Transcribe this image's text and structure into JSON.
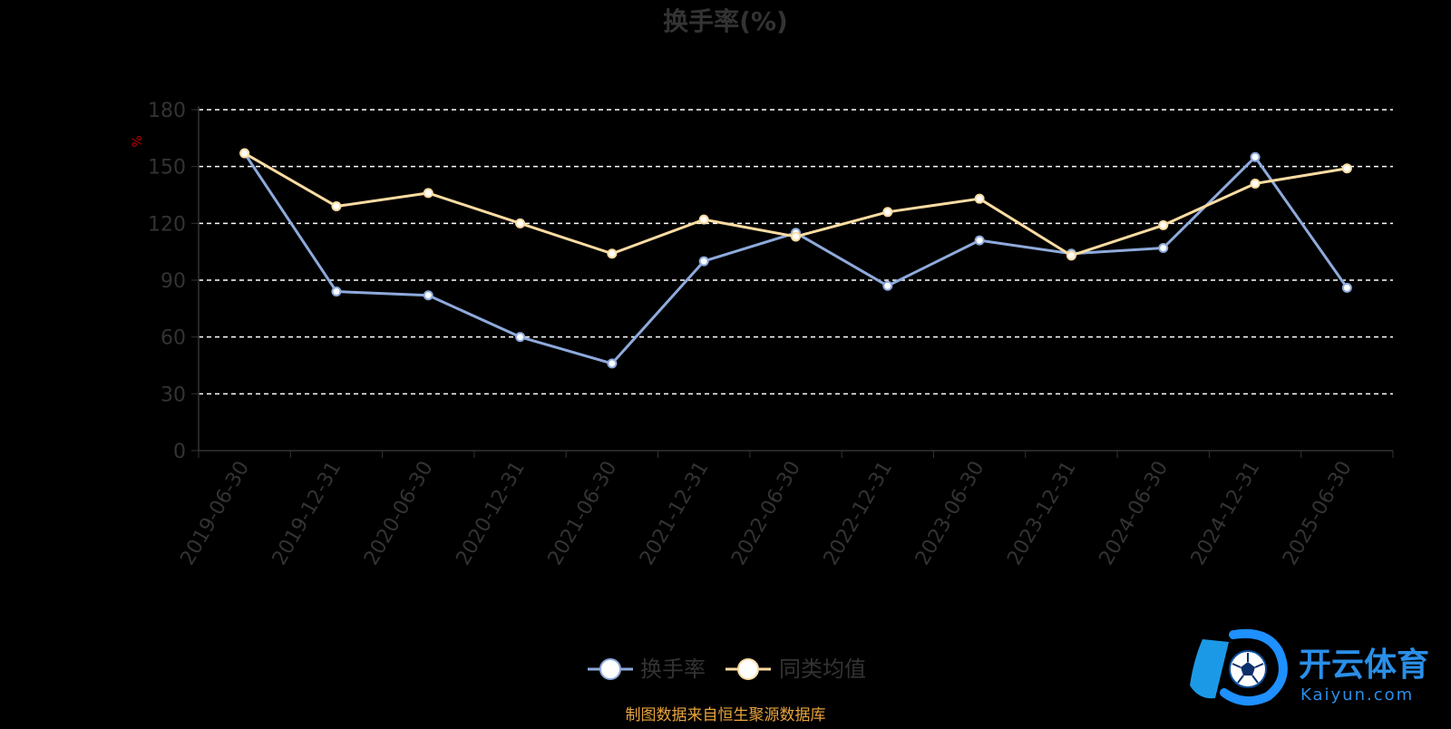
{
  "chart_data": {
    "type": "line",
    "title": "换手率(%)",
    "ylabel": "%",
    "ylim": [
      0,
      180
    ],
    "yticks": [
      0,
      30,
      60,
      90,
      120,
      150,
      180
    ],
    "grid": true,
    "legend_position": "bottom-center",
    "categories": [
      "2019-06-30",
      "2019-12-31",
      "2020-06-30",
      "2020-12-31",
      "2021-06-30",
      "2021-12-31",
      "2022-06-30",
      "2022-12-31",
      "2023-06-30",
      "2023-12-31",
      "2024-06-30",
      "2024-12-31",
      "2025-06-30"
    ],
    "series": [
      {
        "name": "换手率",
        "color": "#8eaadc",
        "values": [
          157,
          84,
          82,
          60,
          46,
          100,
          115,
          87,
          111,
          104,
          107,
          155,
          86
        ]
      },
      {
        "name": "同类均值",
        "color": "#fcdca2",
        "values": [
          157,
          129,
          136,
          120,
          104,
          122,
          113,
          126,
          133,
          103,
          119,
          141,
          149
        ]
      }
    ],
    "source_note": "制图数据来自恒生聚源数据库",
    "watermark": {
      "brand_cn": "开云体育",
      "brand_en": "Kaiyun.com"
    }
  }
}
